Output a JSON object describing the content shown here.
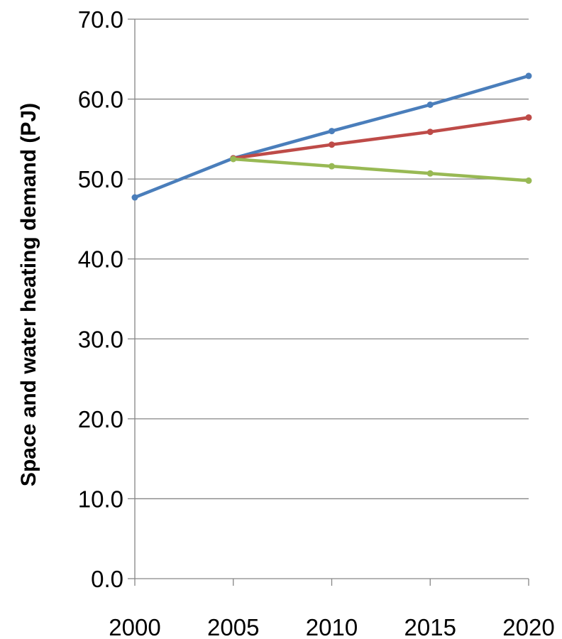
{
  "chart_data": {
    "type": "line",
    "title": "",
    "xlabel": "",
    "ylabel": "Space and water heating demand (PJ)",
    "ylim": [
      0,
      70
    ],
    "y_ticks": [
      "0.0",
      "10.0",
      "20.0",
      "30.0",
      "40.0",
      "50.0",
      "60.0",
      "70.0"
    ],
    "x_ticks": [
      "2000",
      "2005",
      "2010",
      "2015",
      "2020"
    ],
    "grid": "horizontal",
    "legend": "none",
    "series": [
      {
        "color": "#4a7ebb",
        "x": [
          2000,
          2005,
          2010,
          2015,
          2020
        ],
        "y": [
          47.7,
          52.6,
          56.0,
          59.3,
          62.9
        ]
      },
      {
        "color": "#be4b48",
        "x": [
          2005,
          2010,
          2015,
          2020
        ],
        "y": [
          52.6,
          54.3,
          55.9,
          57.7
        ]
      },
      {
        "color": "#98b954",
        "x": [
          2005,
          2010,
          2015,
          2020
        ],
        "y": [
          52.5,
          51.6,
          50.7,
          49.8
        ]
      }
    ]
  }
}
